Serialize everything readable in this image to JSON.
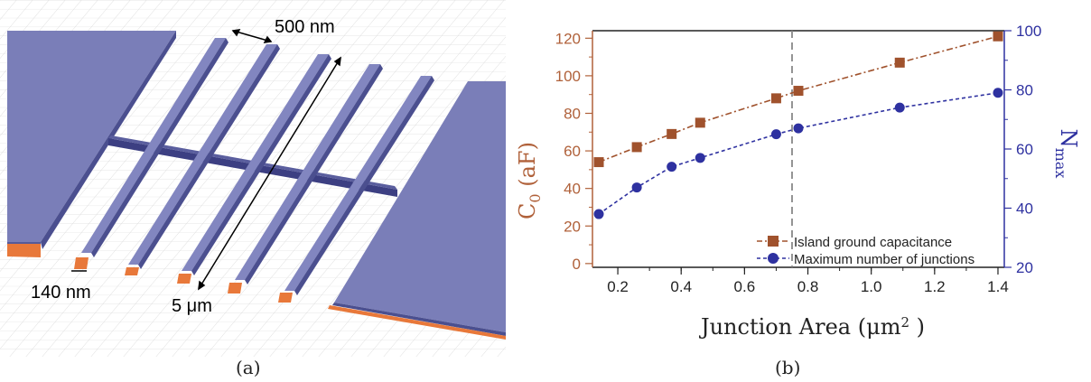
{
  "panel_a": {
    "caption": "(a)",
    "labels": {
      "spacing": "500 nm",
      "width": "140 nm",
      "length": "5 μm"
    },
    "colors": {
      "metal": "#7a7eb8",
      "metal_dark": "#3c3f82",
      "pad_bottom": "#e8783a"
    }
  },
  "panel_b": {
    "caption": "(b)",
    "y_left_label": "C",
    "y_left_sub": "0",
    "y_left_unit": " (aF)",
    "y_right_label": "N",
    "y_right_sub": "max",
    "x_label": "Junction Area (μm",
    "x_label_sup": "2",
    "x_label_end": " )"
  },
  "chart_data": {
    "type": "line",
    "x_tick_labels": [
      "0.2",
      "0.4",
      "0.6",
      "0.8",
      "1.0",
      "1.2",
      "1.4"
    ],
    "y_left_tick_labels": [
      "0",
      "20",
      "40",
      "60",
      "80",
      "100",
      "120"
    ],
    "y_right_tick_labels": [
      "20",
      "40",
      "60",
      "80",
      "100"
    ],
    "xlim": [
      0.12,
      1.42
    ],
    "ylim_left": [
      -2,
      124
    ],
    "ylim_right": [
      20,
      100
    ],
    "vertical_line_x": 0.75,
    "legend_position": "bottom-right",
    "series": [
      {
        "name": "Island ground capacitance",
        "axis": "left",
        "color": "#a0522d",
        "marker": "square",
        "line": "dashdot",
        "x": [
          0.14,
          0.26,
          0.37,
          0.46,
          0.7,
          0.77,
          1.09,
          1.4
        ],
        "y": [
          54,
          62,
          69,
          75,
          88,
          92,
          107,
          121
        ]
      },
      {
        "name": "Maximum number of junctions",
        "axis": "right",
        "color": "#2e31a0",
        "marker": "circle",
        "line": "dashed",
        "x": [
          0.14,
          0.26,
          0.37,
          0.46,
          0.7,
          0.77,
          1.09,
          1.4
        ],
        "y": [
          38,
          47,
          54,
          57,
          65,
          67,
          74,
          79
        ]
      }
    ]
  }
}
